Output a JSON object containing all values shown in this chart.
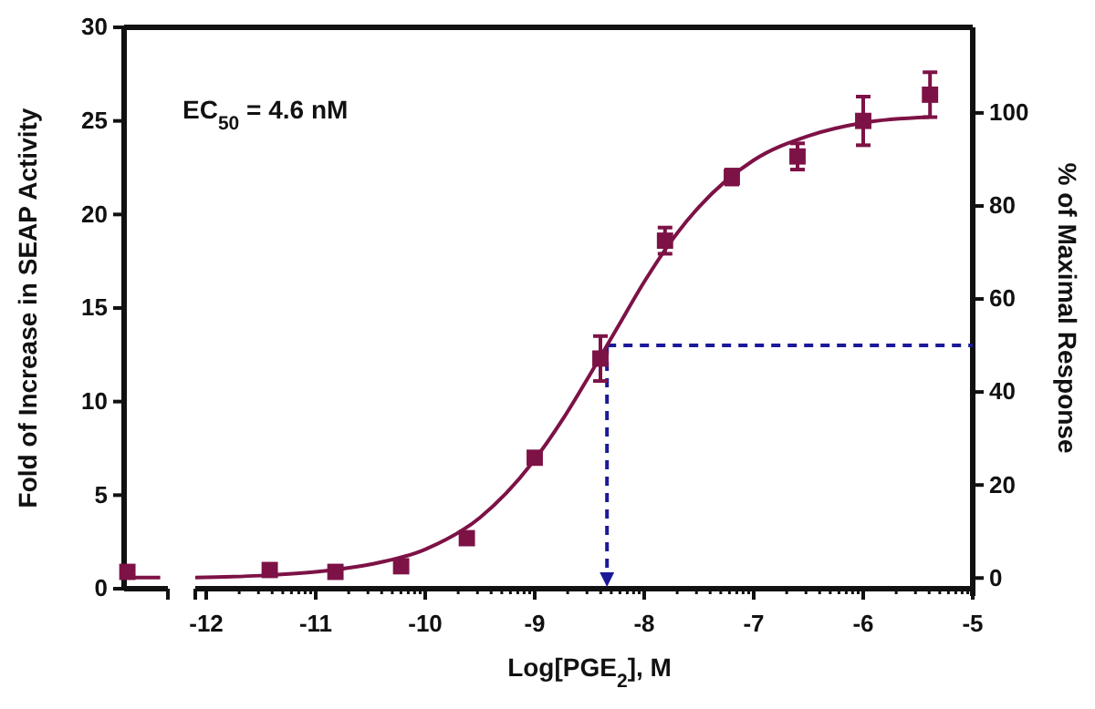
{
  "chart_data": {
    "type": "scatter",
    "xlabel": "Log[PGE$_{2}$], M",
    "ylabel": "Fold of Increase in SEAP Activity",
    "y2label": "% of Maximal Response",
    "annotations": [
      "EC$_{50}$ = 4.6 nM"
    ],
    "xlim": [
      -12.75,
      -5
    ],
    "ylim": [
      0,
      30
    ],
    "y2lim": [
      -2.3,
      118.4
    ],
    "xticks": [
      -12,
      -11,
      -10,
      -9,
      -8,
      -7,
      -6,
      -5
    ],
    "yticks": [
      0,
      5,
      10,
      15,
      20,
      25,
      30
    ],
    "y2ticks": [
      0,
      20,
      40,
      60,
      80,
      100
    ],
    "series": [
      {
        "marker": "square",
        "color": "#7d1246",
        "x": [
          -12.72,
          -11.42,
          -10.82,
          -10.22,
          -9.62,
          -9.0,
          -8.4,
          -7.81,
          -7.2,
          -6.6,
          -6.0,
          -5.39
        ],
        "values": [
          0.9,
          1.0,
          0.9,
          1.2,
          2.7,
          7.0,
          12.3,
          18.6,
          22.0,
          23.1,
          25.0,
          26.4
        ],
        "errors": [
          null,
          null,
          null,
          null,
          null,
          null,
          1.2,
          0.7,
          0.4,
          0.7,
          1.3,
          1.2
        ]
      },
      {
        "type": "line",
        "marker": "none",
        "line_style": "solid",
        "color": "#7d1246",
        "x": [
          -12.74,
          -12.42,
          -12.3,
          -12.1,
          -11.5,
          -11,
          -10.5,
          -10,
          -9.5,
          -9,
          -8.75,
          -8.5,
          -8.34,
          -8.25,
          -8,
          -7.75,
          -7.5,
          -7,
          -6.5,
          -6,
          -5.4
        ],
        "values": [
          0.6,
          0.6,
          null,
          0.6,
          0.7,
          0.9,
          1.3,
          2.1,
          3.8,
          6.9,
          9.0,
          11.4,
          13.0,
          13.9,
          16.4,
          18.6,
          20.4,
          22.9,
          24.2,
          24.9,
          25.2
        ]
      }
    ],
    "ref_lines": [
      {
        "axis": "y2",
        "value": 50,
        "color": "#1a1a99",
        "line_style": "dashed"
      },
      {
        "axis": "x",
        "value": -8.34,
        "color": "#1a1a99",
        "line_style": "dashed"
      }
    ]
  }
}
